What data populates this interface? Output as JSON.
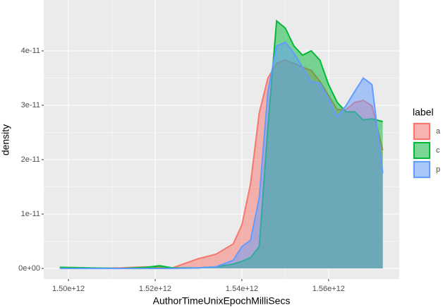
{
  "chart_data": {
    "type": "density",
    "x_label": "AuthorTimeUnixEpochMilliSecs",
    "y_label": "density",
    "legend_title": "label",
    "legend_position": "right",
    "grid": true,
    "x": [
      1498000000000,
      1505000000000,
      1512000000000,
      1518000000000,
      1521000000000,
      1524000000000,
      1530000000000,
      1534000000000,
      1538000000000,
      1540000000000,
      1542000000000,
      1544000000000,
      1546000000000,
      1548000000000,
      1550000000000,
      1552000000000,
      1554000000000,
      1556000000000,
      1558000000000,
      1560000000000,
      1562000000000,
      1564000000000,
      1566000000000,
      1568000000000,
      1570000000000,
      1572500000000
    ],
    "series": [
      {
        "name": "a",
        "color": "#F8766D",
        "values": [
          0,
          0,
          1e-13,
          3e-13,
          2e-13,
          1e-13,
          1.8e-12,
          2.6e-12,
          4.5e-12,
          8e-12,
          1.56e-11,
          2.86e-11,
          3.5e-11,
          3.77e-11,
          3.83e-11,
          3.77e-11,
          3.7e-11,
          3.64e-11,
          3.44e-11,
          3.18e-11,
          2.92e-11,
          2.92e-11,
          3.05e-11,
          3.09e-11,
          2.99e-11,
          2.17e-11
        ]
      },
      {
        "name": "c",
        "color": "#00BA38",
        "values": [
          2e-13,
          1e-13,
          0,
          2e-13,
          5e-13,
          1e-13,
          1e-13,
          3e-13,
          8e-13,
          1.3e-12,
          2e-12,
          4e-12,
          2.6e-11,
          4.55e-11,
          4.42e-11,
          4.09e-11,
          3.92e-11,
          4e-11,
          3.83e-11,
          3.38e-11,
          3.05e-11,
          2.88e-11,
          2.88e-11,
          2.73e-11,
          2.75e-11,
          2.7e-11
        ]
      },
      {
        "name": "p",
        "color": "#619CFF",
        "values": [
          0,
          0,
          0,
          0,
          0,
          0,
          1e-13,
          3e-13,
          1.5e-12,
          4e-12,
          5.2e-12,
          1.3e-11,
          3.25e-11,
          4.09e-11,
          4.16e-11,
          3.96e-11,
          3.7e-11,
          3.44e-11,
          3.4e-11,
          3.12e-11,
          2.79e-11,
          2.99e-11,
          3.25e-11,
          3.5e-11,
          3.38e-11,
          1.75e-11
        ]
      }
    ],
    "xlim": [
      1494300000000,
      1576300000000
    ],
    "ylim": [
      -1.95e-12,
      4.935e-11
    ],
    "xticks": [
      {
        "value": 1500000000000,
        "label": "1.50e+12"
      },
      {
        "value": 1520000000000,
        "label": "1.52e+12"
      },
      {
        "value": 1540000000000,
        "label": "1.54e+12"
      },
      {
        "value": 1560000000000,
        "label": "1.56e+12"
      }
    ],
    "yticks": [
      {
        "value": 0,
        "label": "0e+00"
      },
      {
        "value": 1e-11,
        "label": "1e-11"
      },
      {
        "value": 2e-11,
        "label": "2e-11"
      },
      {
        "value": 3e-11,
        "label": "3e-11"
      },
      {
        "value": 4e-11,
        "label": "4e-11"
      }
    ]
  }
}
